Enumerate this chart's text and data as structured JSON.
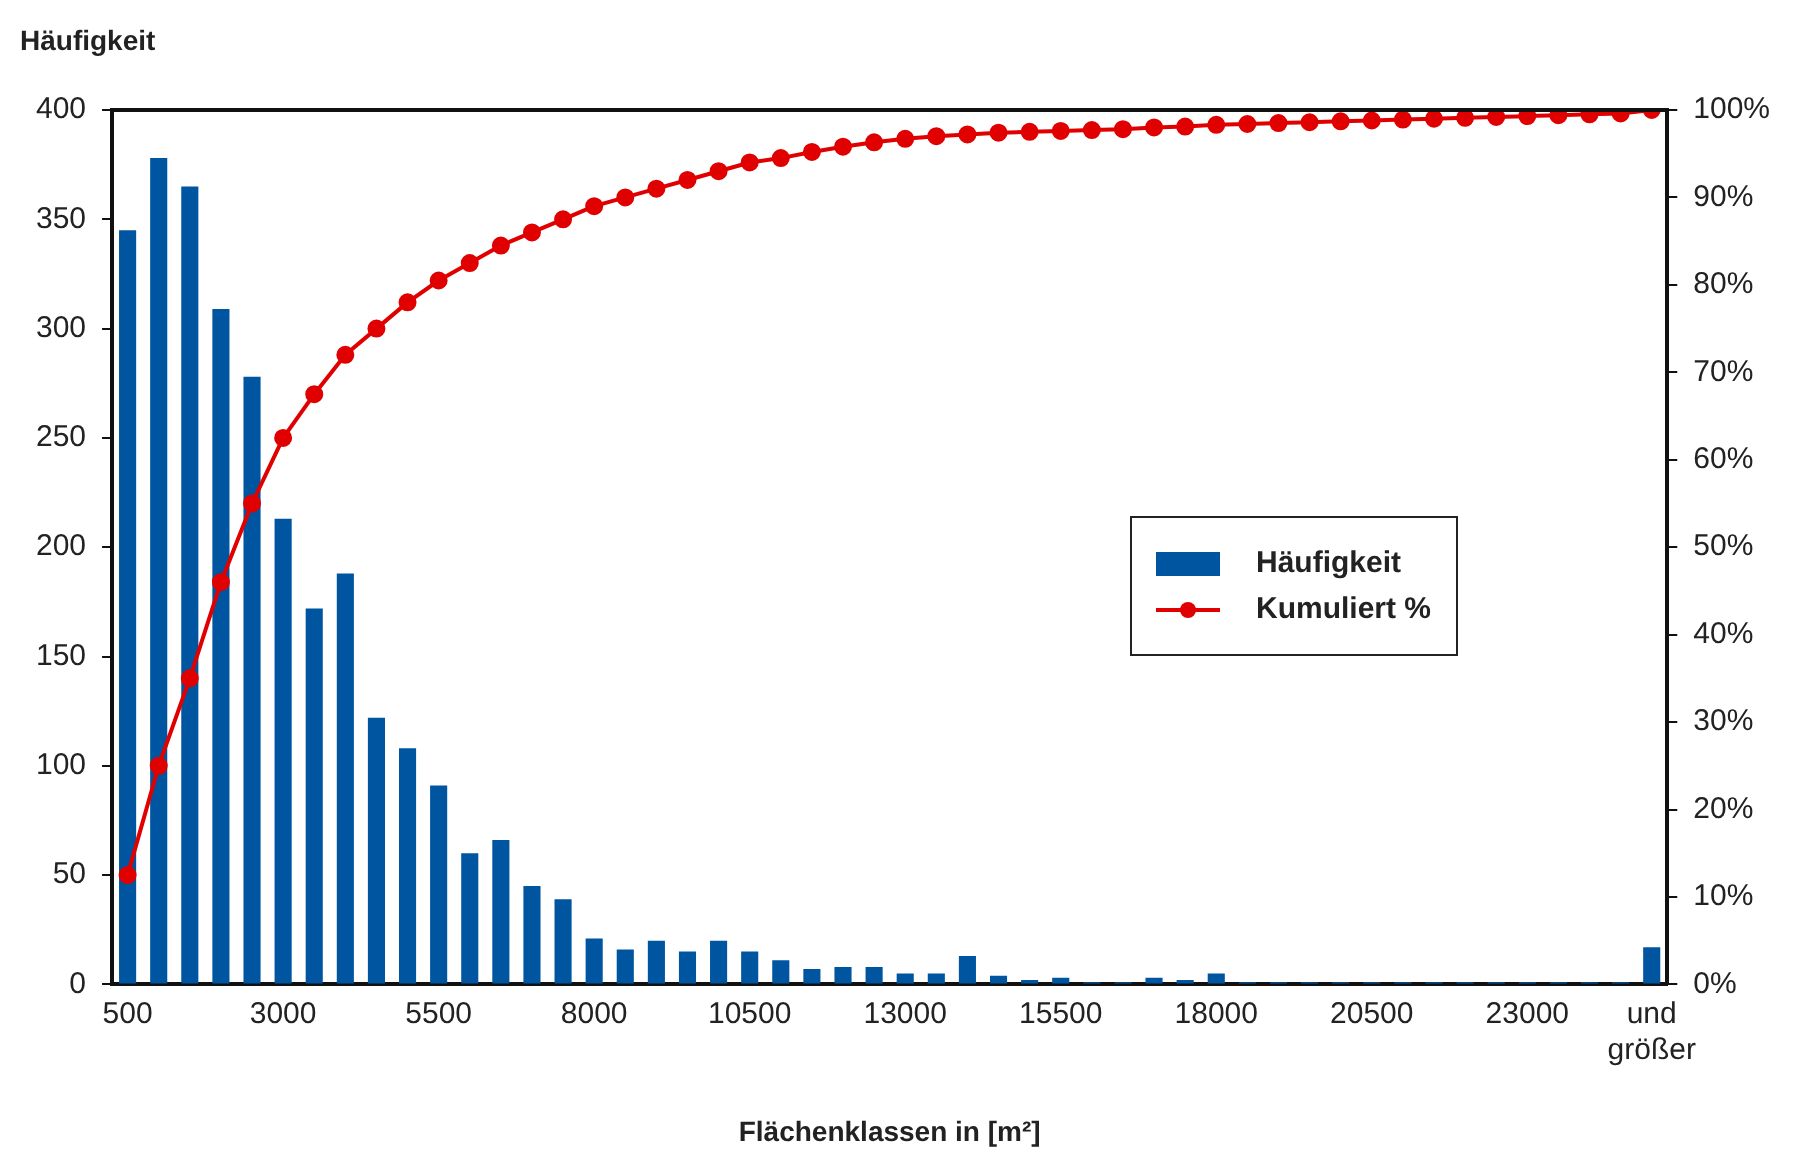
{
  "chart_data": {
    "type": "bar",
    "ylabel": "Häufigkeit",
    "xlabel": "Flächenklassen in [m²]",
    "categories": [
      "500",
      null,
      null,
      null,
      null,
      "3000",
      null,
      null,
      null,
      null,
      "5500",
      null,
      null,
      null,
      null,
      "8000",
      null,
      null,
      null,
      null,
      "10500",
      null,
      null,
      null,
      null,
      "13000",
      null,
      null,
      null,
      null,
      "15500",
      null,
      null,
      null,
      null,
      "18000",
      null,
      null,
      null,
      null,
      "20500",
      null,
      null,
      null,
      null,
      "23000",
      null,
      null,
      null,
      "und größer"
    ],
    "series": [
      {
        "name": "Häufigkeit",
        "type": "bar",
        "color": "#0055a0",
        "values": [
          345,
          378,
          365,
          309,
          278,
          213,
          172,
          188,
          122,
          108,
          91,
          60,
          66,
          45,
          39,
          21,
          16,
          20,
          15,
          20,
          15,
          11,
          7,
          8,
          8,
          5,
          5,
          13,
          4,
          2,
          3,
          1,
          1,
          3,
          2,
          5,
          1,
          1,
          1,
          1,
          1,
          1,
          1,
          1,
          1,
          1,
          1,
          1,
          1,
          17
        ]
      },
      {
        "name": "Kumuliert %",
        "type": "line",
        "axis": "y2",
        "color": "#e00000",
        "values": [
          12.5,
          25,
          35,
          46,
          55,
          62.5,
          67.5,
          72,
          75,
          78,
          80.5,
          82.5,
          84.5,
          86,
          87.5,
          89,
          90,
          91,
          92,
          93,
          94,
          94.5,
          95.2,
          95.8,
          96.3,
          96.7,
          97,
          97.2,
          97.4,
          97.5,
          97.6,
          97.7,
          97.8,
          98,
          98.1,
          98.3,
          98.4,
          98.5,
          98.6,
          98.7,
          98.8,
          98.9,
          99,
          99.1,
          99.2,
          99.3,
          99.4,
          99.5,
          99.6,
          100
        ]
      }
    ],
    "ylim": [
      0,
      400
    ],
    "yticks": [
      0,
      50,
      100,
      150,
      200,
      250,
      300,
      350,
      400
    ],
    "y2lim": [
      0,
      100
    ],
    "y2ticks": [
      {
        "value": 0,
        "label": "0%"
      },
      {
        "value": 10,
        "label": "10%"
      },
      {
        "value": 20,
        "label": "20%"
      },
      {
        "value": 30,
        "label": "30%"
      },
      {
        "value": 40,
        "label": "40%"
      },
      {
        "value": 50,
        "label": "50%"
      },
      {
        "value": 60,
        "label": "60%"
      },
      {
        "value": 70,
        "label": "70%"
      },
      {
        "value": 80,
        "label": "80%"
      },
      {
        "value": 90,
        "label": "90%"
      },
      {
        "value": 100,
        "label": "100%"
      }
    ],
    "grid": false,
    "legend": "right",
    "marker": "circle",
    "line_style": "solid"
  }
}
